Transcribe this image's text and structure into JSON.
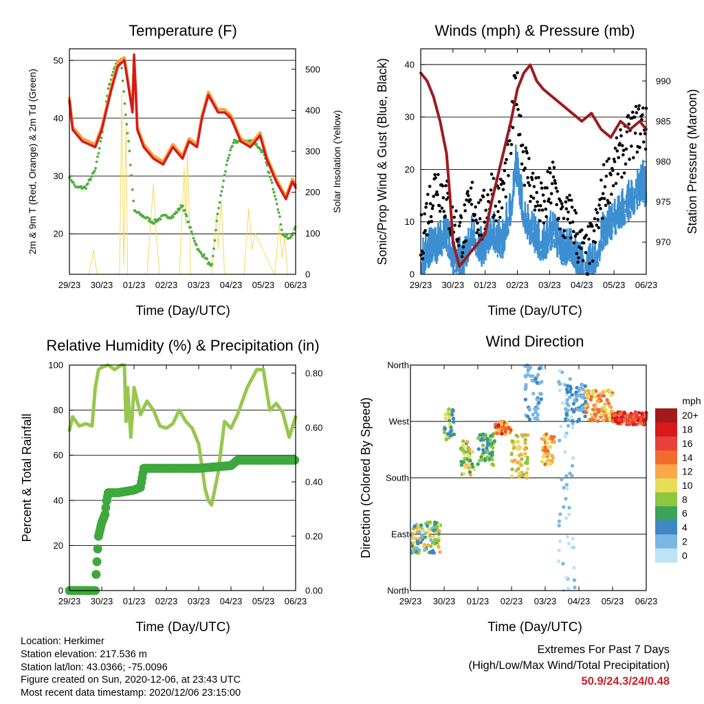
{
  "chart_data": [
    {
      "type": "line",
      "title": "Temperature (F)",
      "xlabel": "Time (Day/UTC)",
      "ylabel_left": "2m & 9m T (Red, Orange) & 2m Td (Green)",
      "ylabel_right": "Solar Insolation (Yellow)",
      "x_ticks": [
        "29/23",
        "30/23",
        "01/23",
        "02/23",
        "03/23",
        "04/23",
        "05/23",
        "06/23"
      ],
      "ylim": [
        13,
        52
      ],
      "y_ticks": [
        20,
        30,
        40,
        50
      ],
      "y2lim": [
        0,
        550
      ],
      "y2_ticks": [
        0,
        100,
        200,
        300,
        400,
        500
      ],
      "series": [
        {
          "name": "2m T",
          "color": "#d7191c",
          "x": [
            0,
            0.1,
            0.4,
            0.8,
            1.0,
            1.3,
            1.5,
            1.7,
            1.95,
            2.0,
            2.05,
            2.1,
            2.3,
            2.6,
            2.9,
            3.2,
            3.5,
            3.7,
            3.95,
            4.1,
            4.3,
            4.6,
            4.8,
            5.0,
            5.3,
            5.6,
            5.9,
            6.1,
            6.4,
            6.7,
            6.9,
            7.0
          ],
          "values": [
            43,
            38,
            36,
            35,
            38,
            45,
            49,
            50,
            41,
            51,
            45,
            38,
            35,
            33,
            32,
            35,
            33,
            36,
            35,
            40,
            44,
            41,
            41,
            40,
            36,
            35,
            37,
            33,
            29,
            26,
            29,
            28
          ]
        },
        {
          "name": "9m T",
          "color": "#f4a23a",
          "x": [
            0,
            0.1,
            0.4,
            0.8,
            1.0,
            1.3,
            1.5,
            1.7,
            1.95,
            2.0,
            2.05,
            2.1,
            2.3,
            2.6,
            2.9,
            3.2,
            3.5,
            3.7,
            3.95,
            4.1,
            4.3,
            4.6,
            4.8,
            5.0,
            5.3,
            5.6,
            5.9,
            6.1,
            6.4,
            6.7,
            6.9,
            7.0
          ],
          "values": [
            43.5,
            38.5,
            36.5,
            35.5,
            38.5,
            45.5,
            49.8,
            50.5,
            41.5,
            50.5,
            45.5,
            38.5,
            35.5,
            33.5,
            32.5,
            35.5,
            33.5,
            36.5,
            35.5,
            40.5,
            44.5,
            41.5,
            41.5,
            40.5,
            36.5,
            35.5,
            37.5,
            33.5,
            29.5,
            26.5,
            29.5,
            28.5
          ]
        },
        {
          "name": "2m Td",
          "color": "#4daf3e",
          "x": [
            0,
            0.2,
            0.5,
            0.8,
            1.0,
            1.2,
            1.4,
            1.6,
            1.75,
            1.85,
            2.0,
            2.3,
            2.6,
            2.9,
            3.2,
            3.5,
            3.8,
            4.0,
            4.2,
            4.4,
            4.6,
            4.9,
            5.1,
            5.4,
            5.7,
            6.0,
            6.2,
            6.4,
            6.6,
            6.8,
            7.0
          ],
          "values": [
            30,
            28,
            28,
            31,
            37,
            45,
            49,
            50,
            40,
            35,
            24,
            23,
            22,
            23,
            23,
            25,
            20,
            17,
            16,
            14,
            24,
            33,
            36,
            36,
            36,
            34,
            30,
            26,
            20,
            19,
            21
          ]
        },
        {
          "name": "Solar Insolation",
          "color": "#f7d85a",
          "axis": "right",
          "x": [
            0.6,
            0.75,
            0.85,
            1.55,
            1.62,
            1.68,
            1.75,
            1.8,
            2.4,
            2.6,
            2.7,
            2.8,
            3.4,
            3.55,
            3.6,
            3.65,
            3.75,
            4.4,
            4.55,
            4.6,
            4.7,
            4.8,
            5.4,
            5.55,
            5.65,
            5.75,
            6.35,
            6.5,
            6.58,
            6.66,
            6.75
          ],
          "values": [
            0,
            60,
            0,
            0,
            440,
            20,
            370,
            0,
            0,
            220,
            80,
            0,
            0,
            260,
            120,
            300,
            0,
            0,
            150,
            60,
            180,
            0,
            0,
            160,
            60,
            100,
            0,
            120,
            40,
            90,
            0
          ]
        }
      ]
    },
    {
      "type": "scatter",
      "title": "Winds (mph) & Pressure (mb)",
      "xlabel": "Time (Day/UTC)",
      "ylabel_left": "Sonic/Prop Wind & Gust (Blue, Black)",
      "ylabel_right": "Station Pressure (Maroon)",
      "x_ticks": [
        "29/23",
        "30/23",
        "01/23",
        "02/23",
        "03/23",
        "04/23",
        "05/23",
        "06/23"
      ],
      "ylim": [
        0,
        43
      ],
      "y_ticks": [
        0,
        10,
        20,
        30,
        40
      ],
      "y2lim": [
        966,
        994
      ],
      "y2_ticks": [
        970,
        975,
        980,
        985,
        990
      ],
      "series": [
        {
          "name": "Wind",
          "color": "#3d8fd1",
          "x": [
            0,
            0.2,
            0.5,
            0.8,
            1.0,
            1.3,
            1.6,
            1.9,
            2.2,
            2.5,
            2.8,
            2.95,
            3.2,
            3.5,
            3.8,
            4.1,
            4.4,
            4.7,
            4.9,
            5.1,
            5.4,
            5.7,
            6.0,
            6.3,
            6.6,
            6.9,
            7.0
          ],
          "values": [
            2,
            5,
            6,
            8,
            4,
            3,
            8,
            5,
            9,
            6,
            13,
            22,
            12,
            8,
            6,
            9,
            5,
            6,
            3,
            1,
            3,
            9,
            11,
            13,
            15,
            18,
            16
          ]
        },
        {
          "name": "Gust",
          "color": "#000000",
          "x": [
            0,
            0.2,
            0.5,
            0.8,
            1.0,
            1.3,
            1.6,
            1.9,
            2.2,
            2.5,
            2.8,
            2.95,
            3.2,
            3.5,
            3.8,
            4.1,
            4.4,
            4.7,
            4.9,
            5.1,
            5.4,
            5.7,
            6.0,
            6.3,
            6.6,
            6.9,
            7.0
          ],
          "values": [
            6,
            12,
            18,
            14,
            9,
            8,
            14,
            10,
            16,
            14,
            25,
            37,
            22,
            16,
            12,
            18,
            10,
            11,
            6,
            3,
            7,
            17,
            20,
            24,
            27,
            29,
            27
          ]
        },
        {
          "name": "Station Pressure",
          "color": "#9b1b1f",
          "axis": "right",
          "x": [
            0,
            0.2,
            0.4,
            0.6,
            0.8,
            0.9,
            1.0,
            1.2,
            1.4,
            1.6,
            1.8,
            2.0,
            2.2,
            2.5,
            2.8,
            3.0,
            3.2,
            3.4,
            3.6,
            3.8,
            4.1,
            4.4,
            4.7,
            5.0,
            5.3,
            5.6,
            5.9,
            6.2,
            6.5,
            6.8,
            7.0
          ],
          "values": [
            991,
            990,
            988,
            985,
            981,
            976,
            970,
            967,
            968,
            969,
            970,
            971,
            975,
            980,
            985,
            989,
            991,
            992,
            990,
            989,
            988,
            987,
            986,
            985,
            986,
            984,
            983,
            985,
            984,
            985,
            984
          ]
        }
      ]
    },
    {
      "type": "line",
      "title": "Relative Humidity (%) & Precipitation (in)",
      "xlabel": "Time (Day/UTC)",
      "ylabel_left": "Percent & Total Rainfall",
      "x_ticks": [
        "29/23",
        "30/23",
        "01/23",
        "02/23",
        "03/23",
        "04/23",
        "05/23",
        "06/23"
      ],
      "ylim": [
        0,
        100
      ],
      "y_ticks": [
        0,
        20,
        40,
        60,
        80,
        100
      ],
      "y2lim": [
        0,
        0.83
      ],
      "y2_ticks": [
        "0.00",
        "0.20",
        "0.40",
        "0.60",
        "0.80"
      ],
      "series": [
        {
          "name": "Relative Humidity",
          "color": "#97c74f",
          "x": [
            0,
            0.1,
            0.3,
            0.5,
            0.7,
            0.8,
            0.9,
            1.0,
            1.2,
            1.4,
            1.6,
            1.7,
            1.75,
            1.8,
            1.9,
            2.0,
            2.2,
            2.4,
            2.6,
            2.8,
            3.0,
            3.2,
            3.4,
            3.6,
            3.8,
            4.0,
            4.2,
            4.3,
            4.4,
            4.6,
            4.8,
            5.0,
            5.2,
            5.5,
            5.8,
            6.0,
            6.2,
            6.4,
            6.6,
            6.8,
            7.0
          ],
          "values": [
            71,
            77,
            73,
            74,
            73,
            90,
            98,
            99,
            100,
            98,
            100,
            100,
            75,
            90,
            68,
            90,
            78,
            84,
            80,
            73,
            72,
            74,
            80,
            75,
            72,
            65,
            45,
            40,
            38,
            52,
            75,
            72,
            78,
            90,
            98,
            98,
            80,
            83,
            79,
            68,
            77
          ]
        },
        {
          "name": "Total Precipitation",
          "color": "#3ea83d",
          "axis": "right",
          "x": [
            0,
            0.8,
            0.82,
            0.9,
            1.0,
            1.1,
            1.15,
            1.2,
            1.5,
            2.0,
            2.2,
            2.3,
            2.7,
            3.0,
            3.5,
            4.0,
            5.0,
            5.2,
            5.25,
            7.0
          ],
          "values": [
            0,
            0,
            0.05,
            0.2,
            0.25,
            0.28,
            0.33,
            0.36,
            0.36,
            0.37,
            0.38,
            0.45,
            0.45,
            0.45,
            0.45,
            0.45,
            0.46,
            0.48,
            0.48,
            0.48
          ]
        }
      ]
    },
    {
      "type": "scatter",
      "title": "Wind Direction",
      "xlabel": "Time (Day/UTC)",
      "ylabel": "Direction (Colored By Speed)",
      "x_ticks": [
        "29/23",
        "30/23",
        "01/23",
        "02/23",
        "03/23",
        "04/23",
        "05/23",
        "06/23"
      ],
      "y_ticks": [
        "North",
        "East",
        "South",
        "West",
        "North"
      ],
      "ylim": [
        0,
        360
      ],
      "legend": {
        "title": "mph",
        "labels": [
          "20+",
          "18",
          "16",
          "14",
          "12",
          "10",
          "8",
          "6",
          "4",
          "2",
          "0"
        ],
        "colors": [
          "#a21a1a",
          "#d7191c",
          "#e8403a",
          "#f26b2f",
          "#f8a848",
          "#e7dd57",
          "#8dc63f",
          "#3aa35b",
          "#3f87c5",
          "#7ab7e3",
          "#bfe3f6"
        ]
      },
      "clusters": [
        {
          "x": [
            0,
            0.9
          ],
          "dir": [
            60,
            110
          ],
          "speed": [
            2,
            14
          ]
        },
        {
          "x": [
            1.0,
            1.3
          ],
          "dir": [
            240,
            290
          ],
          "speed": [
            4,
            12
          ]
        },
        {
          "x": [
            1.5,
            1.9
          ],
          "dir": [
            180,
            240
          ],
          "speed": [
            6,
            14
          ]
        },
        {
          "x": [
            2.0,
            2.5
          ],
          "dir": [
            200,
            250
          ],
          "speed": [
            4,
            10
          ]
        },
        {
          "x": [
            2.5,
            3.0
          ],
          "dir": [
            250,
            270
          ],
          "speed": [
            10,
            20
          ]
        },
        {
          "x": [
            3.0,
            3.5
          ],
          "dir": [
            180,
            250
          ],
          "speed": [
            8,
            14
          ]
        },
        {
          "x": [
            3.4,
            3.9
          ],
          "dir": [
            270,
            360
          ],
          "speed": [
            2,
            5
          ]
        },
        {
          "x": [
            3.9,
            4.3
          ],
          "dir": [
            200,
            250
          ],
          "speed": [
            10,
            16
          ]
        },
        {
          "x": [
            4.4,
            4.9
          ],
          "dir": [
            0,
            360
          ],
          "speed": [
            0,
            4
          ]
        },
        {
          "x": [
            4.6,
            5.2
          ],
          "dir": [
            270,
            330
          ],
          "speed": [
            2,
            6
          ]
        },
        {
          "x": [
            5.2,
            6.0
          ],
          "dir": [
            270,
            320
          ],
          "speed": [
            10,
            16
          ]
        },
        {
          "x": [
            6.0,
            7.0
          ],
          "dir": [
            265,
            285
          ],
          "speed": [
            14,
            20
          ]
        }
      ]
    }
  ],
  "info": {
    "location": "Location: Herkimer",
    "elevation": "Station elevation: 217.536 m",
    "latlon": "Station lat/lon: 43.0366; -75.0096",
    "created": "Figure created on Sun, 2020-12-06, at 23:43 UTC",
    "recent": "Most recent data timestamp: 2020/12/06 23:15:00"
  },
  "extremes": {
    "title": "Extremes For Past 7 Days",
    "subtitle": "(High/Low/Max Wind/Total Precipitation)",
    "values": "50.9/24.3/24/0.48"
  }
}
